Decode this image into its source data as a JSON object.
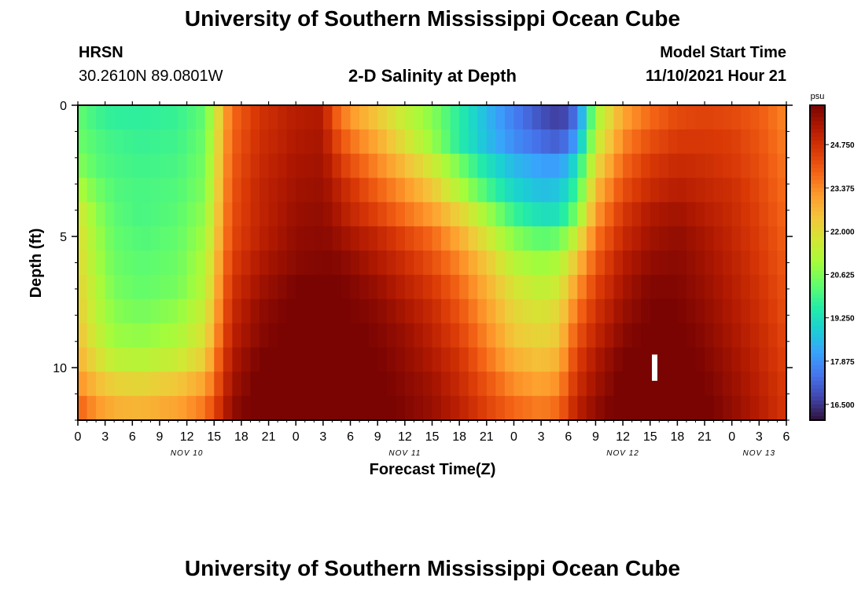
{
  "header": {
    "title": "University of Southern Mississippi Ocean Cube",
    "station": "HRSN",
    "coords": "30.2610N  89.0801W",
    "plot_title": "2-D Salinity at Depth",
    "model_start_label": "Model Start Time",
    "model_start_value": "11/10/2021 Hour 21"
  },
  "footer": {
    "title": "University of Southern Mississippi Ocean Cube"
  },
  "colors": {
    "frame": "#000000",
    "background": "#ffffff",
    "missing": "#ffffff",
    "scale": [
      "#30123b",
      "#4145ab",
      "#4675ed",
      "#39a2fc",
      "#1bcfd4",
      "#24eca6",
      "#61fc6c",
      "#a4fc3b",
      "#d1e834",
      "#f3c63a",
      "#fe9b2d",
      "#f36315",
      "#d93806",
      "#b11901",
      "#7a0402"
    ]
  },
  "chart_data": {
    "type": "heatmap",
    "title": "2-D Salinity at Depth",
    "xlabel": "Forecast Time(Z)",
    "ylabel": "Depth (ft)",
    "x_hours_range": [
      0,
      78
    ],
    "x_ticks": [
      "0",
      "3",
      "6",
      "9",
      "12",
      "15",
      "18",
      "21",
      "0",
      "3",
      "6",
      "9",
      "12",
      "15",
      "18",
      "21",
      "0",
      "3",
      "6",
      "9",
      "12",
      "15",
      "18",
      "21",
      "0",
      "3",
      "6"
    ],
    "x_tick_hours": [
      0,
      3,
      6,
      9,
      12,
      15,
      18,
      21,
      24,
      27,
      30,
      33,
      36,
      39,
      42,
      45,
      48,
      51,
      54,
      57,
      60,
      63,
      66,
      69,
      72,
      75,
      78
    ],
    "date_labels": [
      {
        "label": "NOV 10",
        "hour": 12
      },
      {
        "label": "NOV 11",
        "hour": 36
      },
      {
        "label": "NOV 12",
        "hour": 60
      },
      {
        "label": "NOV 13",
        "hour": 75
      }
    ],
    "y_range_ft": [
      0,
      12
    ],
    "y_ticks": [
      {
        "label": "0",
        "value": 0
      },
      {
        "label": "5",
        "value": 5
      },
      {
        "label": "10",
        "value": 10
      }
    ],
    "colorbar": {
      "unit": "psu",
      "min": 16.0,
      "max": 26.0,
      "tick_labels": [
        "24.750",
        "23.375",
        "22.000",
        "20.625",
        "19.250",
        "17.875",
        "16.500"
      ],
      "tick_values": [
        24.75,
        23.375,
        22.0,
        20.625,
        19.25,
        17.875,
        16.5
      ]
    },
    "depth_layers_ft": [
      0,
      1,
      2,
      3,
      4,
      5,
      6,
      7,
      8,
      9,
      10,
      11,
      12
    ],
    "time_keys_hours": [
      0,
      2,
      4,
      7,
      11,
      14,
      15,
      16,
      17,
      20,
      24,
      27,
      28,
      30,
      33,
      36,
      39,
      42,
      45,
      48,
      51,
      53,
      54,
      55,
      57,
      60,
      63,
      66,
      69,
      72,
      75,
      78
    ],
    "salinity_psu": [
      [
        20.3,
        19.9,
        19.7,
        19.7,
        19.8,
        20.3,
        21.4,
        22.8,
        23.8,
        24.7,
        25.2,
        25.3,
        24.2,
        23.2,
        22.4,
        21.5,
        20.7,
        19.6,
        18.5,
        17.6,
        16.9,
        16.6,
        16.9,
        17.6,
        21.0,
        23.0,
        23.8,
        24.3,
        24.4,
        24.3,
        24.0,
        23.4
      ],
      [
        20.4,
        20.1,
        19.9,
        19.8,
        19.9,
        20.4,
        21.5,
        22.9,
        23.9,
        24.8,
        25.3,
        25.4,
        24.6,
        23.7,
        22.9,
        21.9,
        20.9,
        19.6,
        18.6,
        17.8,
        17.3,
        17.1,
        17.5,
        18.3,
        21.4,
        23.4,
        24.2,
        24.6,
        24.6,
        24.5,
        24.1,
        23.5
      ],
      [
        20.7,
        20.2,
        20.0,
        19.9,
        20.0,
        20.5,
        21.6,
        23.0,
        24.0,
        24.9,
        25.4,
        25.5,
        25.0,
        24.2,
        23.4,
        22.6,
        21.7,
        20.5,
        19.3,
        18.5,
        18.1,
        18.1,
        18.5,
        19.4,
        22.0,
        23.8,
        24.6,
        24.9,
        24.8,
        24.6,
        24.2,
        23.6
      ],
      [
        21.2,
        20.5,
        20.1,
        20.0,
        20.1,
        20.6,
        21.7,
        23.1,
        24.1,
        25.0,
        25.5,
        25.6,
        25.3,
        24.7,
        23.9,
        23.2,
        22.4,
        21.2,
        20.0,
        19.0,
        18.6,
        18.7,
        19.2,
        20.0,
        22.6,
        24.2,
        24.9,
        25.2,
        25.0,
        24.8,
        24.3,
        23.7
      ],
      [
        21.8,
        20.8,
        20.2,
        20.0,
        20.2,
        20.8,
        21.9,
        23.2,
        24.2,
        25.0,
        25.6,
        25.7,
        25.5,
        25.0,
        24.4,
        23.7,
        23.1,
        22.2,
        21.0,
        19.8,
        19.2,
        19.3,
        19.9,
        20.7,
        23.1,
        24.6,
        25.3,
        25.5,
        25.2,
        24.9,
        24.4,
        23.8
      ],
      [
        22.0,
        21.0,
        20.3,
        20.1,
        20.3,
        21.0,
        22.1,
        23.3,
        24.3,
        25.1,
        25.7,
        25.8,
        25.7,
        25.4,
        25.0,
        24.4,
        23.8,
        22.9,
        21.8,
        20.7,
        20.2,
        20.4,
        21.0,
        21.8,
        23.6,
        24.9,
        25.5,
        25.7,
        25.4,
        25.0,
        24.5,
        23.9
      ],
      [
        22.1,
        21.1,
        20.4,
        20.2,
        20.4,
        21.2,
        22.3,
        23.5,
        24.5,
        25.3,
        25.8,
        25.9,
        25.9,
        25.7,
        25.3,
        24.8,
        24.2,
        23.4,
        22.4,
        21.3,
        20.9,
        21.2,
        21.8,
        22.6,
        24.0,
        25.2,
        25.7,
        25.8,
        25.5,
        25.1,
        24.6,
        24.0
      ],
      [
        22.2,
        21.3,
        20.5,
        20.3,
        20.5,
        21.3,
        22.5,
        23.7,
        24.7,
        25.5,
        26.0,
        26.1,
        26.1,
        25.9,
        25.6,
        25.1,
        24.6,
        23.8,
        22.8,
        21.8,
        21.4,
        21.7,
        22.4,
        23.2,
        24.4,
        25.4,
        25.9,
        25.9,
        25.6,
        25.2,
        24.7,
        24.1
      ],
      [
        22.3,
        21.4,
        20.7,
        20.5,
        20.8,
        21.6,
        22.7,
        23.9,
        24.9,
        25.7,
        26.1,
        26.2,
        26.2,
        26.0,
        25.8,
        25.4,
        24.9,
        24.1,
        23.1,
        22.1,
        21.8,
        22.1,
        22.9,
        23.7,
        24.7,
        25.6,
        26.0,
        26.0,
        25.7,
        25.3,
        24.8,
        24.2
      ],
      [
        22.5,
        21.6,
        20.9,
        20.8,
        21.1,
        21.9,
        23.0,
        24.1,
        25.1,
        25.8,
        26.2,
        26.3,
        26.3,
        26.1,
        25.9,
        25.6,
        25.1,
        24.4,
        23.4,
        22.4,
        22.1,
        22.4,
        23.3,
        24.1,
        25.0,
        25.8,
        26.1,
        26.1,
        25.8,
        25.4,
        24.9,
        24.3
      ],
      [
        22.8,
        22.0,
        21.4,
        21.3,
        21.6,
        22.3,
        23.4,
        24.4,
        25.3,
        26.0,
        26.3,
        26.4,
        26.4,
        26.2,
        26.0,
        25.7,
        25.3,
        24.7,
        23.7,
        22.8,
        22.5,
        22.8,
        23.7,
        24.5,
        25.3,
        26.0,
        26.2,
        26.2,
        25.9,
        25.5,
        25.0,
        24.4
      ],
      [
        23.3,
        22.6,
        22.2,
        22.1,
        22.4,
        23.0,
        23.8,
        24.7,
        25.5,
        26.1,
        26.4,
        26.5,
        26.5,
        26.3,
        26.1,
        25.8,
        25.5,
        24.9,
        24.1,
        23.3,
        23.0,
        23.3,
        24.1,
        24.8,
        25.5,
        26.1,
        26.3,
        26.3,
        26.0,
        25.6,
        25.1,
        24.5
      ],
      [
        23.9,
        23.2,
        22.8,
        22.7,
        23.0,
        23.6,
        24.3,
        25.0,
        25.7,
        26.2,
        26.5,
        26.6,
        26.6,
        26.4,
        26.2,
        25.9,
        25.6,
        25.1,
        24.4,
        23.8,
        23.5,
        23.8,
        24.5,
        25.1,
        25.7,
        26.2,
        26.4,
        26.4,
        26.1,
        25.7,
        25.2,
        24.6
      ]
    ],
    "missing_cells": [
      {
        "hour": 63,
        "depth_from_ft": 9.5,
        "depth_to_ft": 10.5
      }
    ]
  }
}
